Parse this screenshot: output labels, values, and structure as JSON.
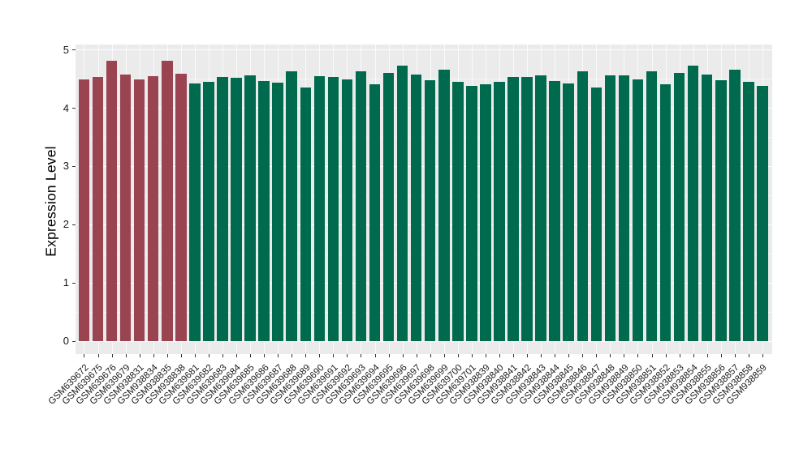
{
  "chart_data": {
    "type": "bar",
    "title": "",
    "xlabel": "",
    "ylabel": "Expression Level",
    "ylim": [
      0,
      5
    ],
    "yticks": [
      0,
      1,
      2,
      3,
      4,
      5
    ],
    "legend_position": "none",
    "grid": "gray panel with white major and minor gridlines (ggplot style), vertical gridline at each category center",
    "group_colors": {
      "highlight": "#9A4452",
      "normal": "#006A4E"
    },
    "categories": [
      "GSM639672",
      "GSM639675",
      "GSM639676",
      "GSM639679",
      "GSM938831",
      "GSM938834",
      "GSM938835",
      "GSM938838",
      "GSM639681",
      "GSM639682",
      "GSM639683",
      "GSM639684",
      "GSM639685",
      "GSM639686",
      "GSM639687",
      "GSM639688",
      "GSM639689",
      "GSM639690",
      "GSM639691",
      "GSM639692",
      "GSM639693",
      "GSM639694",
      "GSM639695",
      "GSM639696",
      "GSM639697",
      "GSM639698",
      "GSM639699",
      "GSM639700",
      "GSM639701",
      "GSM938839",
      "GSM938840",
      "GSM938841",
      "GSM938842",
      "GSM938843",
      "GSM938844",
      "GSM938845",
      "GSM938846",
      "GSM938847",
      "GSM938848",
      "GSM938849",
      "GSM938850",
      "GSM938851",
      "GSM938852",
      "GSM938853",
      "GSM938854",
      "GSM938855",
      "GSM938856",
      "GSM938857",
      "GSM938858",
      "GSM938859"
    ],
    "values": [
      4.49,
      4.53,
      4.8,
      4.57,
      4.48,
      4.54,
      4.8,
      4.58,
      4.42,
      4.45,
      4.53,
      4.52,
      4.56,
      4.46,
      4.43,
      4.62,
      4.35,
      4.54,
      4.53,
      4.49,
      4.62,
      4.4,
      4.6,
      4.73,
      4.57,
      4.47,
      4.66,
      4.44,
      4.38,
      4.41,
      4.44,
      4.53,
      4.53,
      4.56,
      4.46,
      4.42,
      4.62,
      4.35,
      4.55,
      4.55,
      4.49,
      4.62,
      4.4,
      4.6,
      4.73,
      4.57,
      4.47,
      4.66,
      4.44,
      4.38
    ],
    "bar_groups": [
      "highlight",
      "highlight",
      "highlight",
      "highlight",
      "highlight",
      "highlight",
      "highlight",
      "highlight",
      "normal",
      "normal",
      "normal",
      "normal",
      "normal",
      "normal",
      "normal",
      "normal",
      "normal",
      "normal",
      "normal",
      "normal",
      "normal",
      "normal",
      "normal",
      "normal",
      "normal",
      "normal",
      "normal",
      "normal",
      "normal",
      "normal",
      "normal",
      "normal",
      "normal",
      "normal",
      "normal",
      "normal",
      "normal",
      "normal",
      "normal",
      "normal",
      "normal",
      "normal",
      "normal",
      "normal",
      "normal",
      "normal",
      "normal",
      "normal",
      "normal",
      "normal"
    ],
    "panel_background": "#EBEBEB",
    "figure_background": "#FFFFFF",
    "tick_color": "#333333",
    "text_color": "#1A1A1A"
  }
}
